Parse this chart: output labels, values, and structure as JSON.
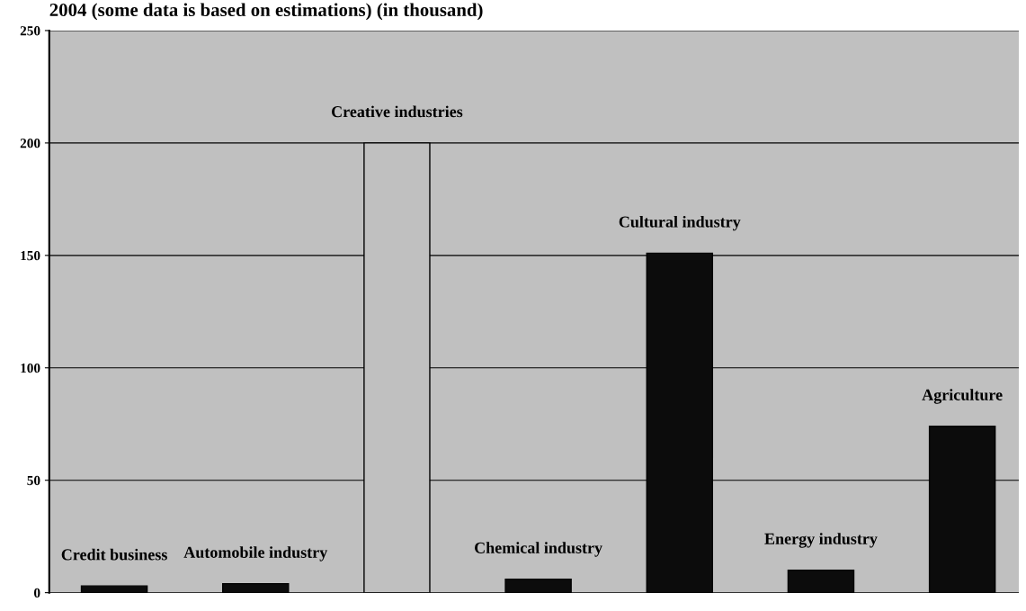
{
  "chart_data": {
    "type": "bar",
    "title": "2004 (some data is based on estimations) (in thousand)",
    "categories": [
      "Credit business",
      "Automobile industry",
      "Creative industries",
      "Chemical industry",
      "Cultural industry",
      "Energy industry",
      "Agriculture"
    ],
    "values": [
      3,
      4,
      200,
      6,
      151,
      10,
      74
    ],
    "colors": [
      "#0c0c0c",
      "#0c0c0c",
      "#c0c0c0",
      "#0c0c0c",
      "#0c0c0c",
      "#0c0c0c",
      "#0c0c0c"
    ],
    "ylim": [
      0,
      250
    ],
    "yticks": [
      0,
      50,
      100,
      150,
      200,
      250
    ],
    "grid": "y"
  }
}
